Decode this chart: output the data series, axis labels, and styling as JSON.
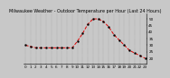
{
  "title": "Milwaukee Weather - Outdoor Temperature per Hour (Last 24 Hours)",
  "hours": [
    0,
    1,
    2,
    3,
    4,
    5,
    6,
    7,
    8,
    9,
    10,
    11,
    12,
    13,
    14,
    15,
    16,
    17,
    18,
    19,
    20,
    21,
    22,
    23
  ],
  "temps": [
    30,
    29,
    28,
    28,
    28,
    28,
    28,
    28,
    28,
    28,
    33,
    39,
    46,
    50,
    50,
    48,
    44,
    38,
    34,
    30,
    26,
    24,
    22,
    20
  ],
  "line_color": "#dd0000",
  "bg_color": "#c8c8c8",
  "plot_bg_color": "#c8c8c8",
  "grid_color": "#888888",
  "ylim": [
    16,
    54
  ],
  "yticks": [
    20,
    25,
    30,
    35,
    40,
    45,
    50
  ],
  "ylabel_fontsize": 3.0,
  "xlabel_fontsize": 3.0,
  "title_fontsize": 3.5,
  "linewidth": 0.7,
  "marker_size": 1.5
}
